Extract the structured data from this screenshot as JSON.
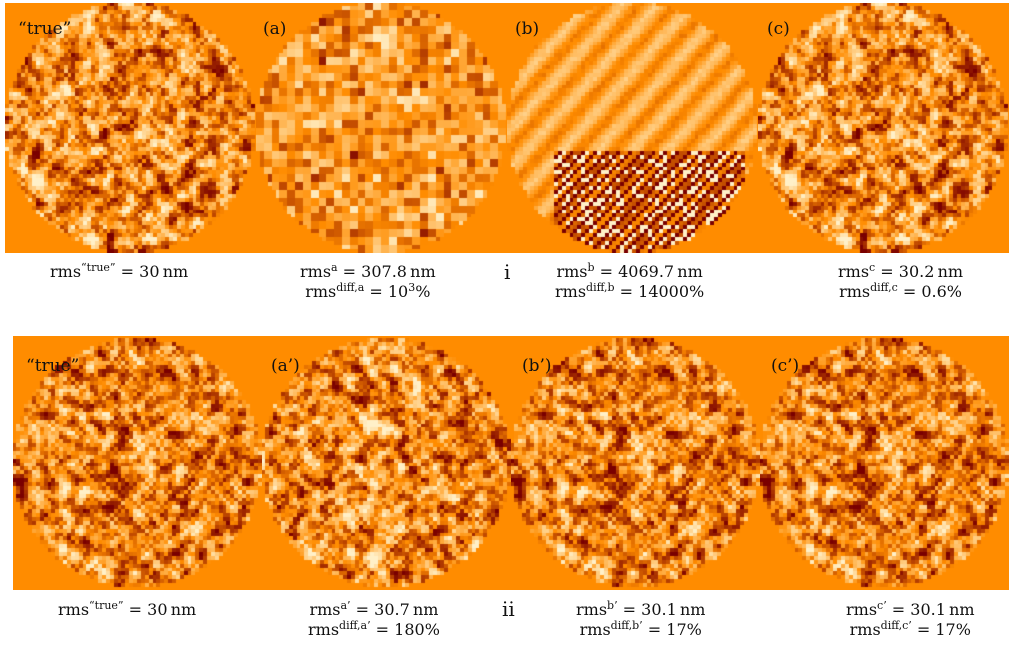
{
  "colors": {
    "background": "#ff8c00",
    "low": "#7a0000",
    "mid": "#ff8c00",
    "high": "#fff0c8"
  },
  "row_i": {
    "roman": "i",
    "panels": [
      {
        "label": "“true”",
        "type": "speckle",
        "seed": 11
      },
      {
        "label": "(a)",
        "type": "blocky",
        "seed": 23
      },
      {
        "label": "(b)",
        "type": "stripes",
        "seed": 37
      },
      {
        "label": "(c)",
        "type": "speckle",
        "seed": 11
      }
    ],
    "stats": [
      {
        "base": "rms",
        "sup": "“true”",
        "rest": " = 30 nm"
      },
      {
        "base": "rms",
        "sup": "a",
        "rest": " = 307.8 nm",
        "line2_base": "rms",
        "line2_sup": "diff,a",
        "line2_rest": " = 10",
        "line2_pow": "3",
        "line2_end": "%"
      },
      {
        "base": "rms",
        "sup": "b",
        "rest": " = 4069.7 nm",
        "line2_base": "rms",
        "line2_sup": "diff,b",
        "line2_rest": " = 14000%"
      },
      {
        "base": "rms",
        "sup": "c",
        "rest": " = 30.2 nm",
        "line2_base": "rms",
        "line2_sup": "diff,c",
        "line2_rest": " = 0.6%"
      }
    ]
  },
  "row_ii": {
    "roman": "ii",
    "panels": [
      {
        "label": "“true”",
        "type": "speckle",
        "seed": 53
      },
      {
        "label": "(a’)",
        "type": "speckle",
        "seed": 61
      },
      {
        "label": "(b’)",
        "type": "speckle",
        "seed": 53
      },
      {
        "label": "(c’)",
        "type": "speckle",
        "seed": 53
      }
    ],
    "stats": [
      {
        "base": "rms",
        "sup": "“true”",
        "rest": " = 30 nm"
      },
      {
        "base": "rms",
        "sup": "a’",
        "rest": " = 30.7 nm",
        "line2_base": "rms",
        "line2_sup": "diff,a’",
        "line2_rest": " = 180%"
      },
      {
        "base": "rms",
        "sup": "b’",
        "rest": " = 30.1 nm",
        "line2_base": "rms",
        "line2_sup": "diff,b’",
        "line2_rest": " = 17%"
      },
      {
        "base": "rms",
        "sup": "c’",
        "rest": " = 30.1 nm",
        "line2_base": "rms",
        "line2_sup": "diff,c’",
        "line2_rest": " = 17%"
      }
    ]
  }
}
